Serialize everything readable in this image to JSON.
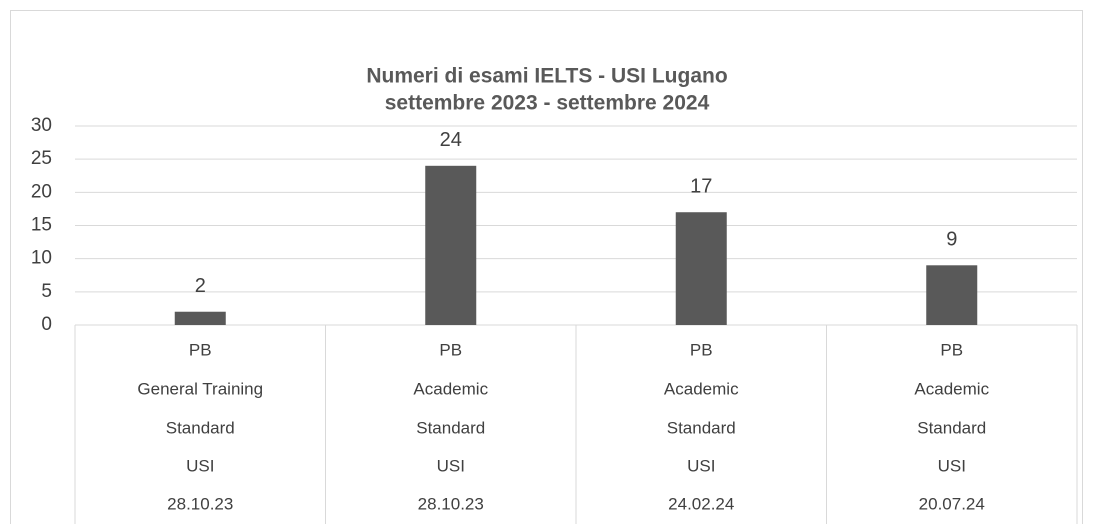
{
  "chart_data": {
    "type": "bar",
    "title": "Numeri di esami IELTS - USI Lugano",
    "subtitle": "settembre 2023 - settembre 2024",
    "categories": [
      [
        "PB",
        "General Training",
        "Standard",
        "USI",
        "28.10.23"
      ],
      [
        "PB",
        "Academic",
        "Standard",
        "USI",
        "28.10.23"
      ],
      [
        "PB",
        "Academic",
        "Standard",
        "USI",
        "24.02.24"
      ],
      [
        "PB",
        "Academic",
        "Standard",
        "USI",
        "20.07.24"
      ]
    ],
    "values": [
      2,
      24,
      17,
      9
    ],
    "color": "#595959",
    "ylim": [
      0,
      30
    ],
    "yticks": [
      0,
      5,
      10,
      15,
      20,
      25,
      30
    ],
    "grid": true
  }
}
